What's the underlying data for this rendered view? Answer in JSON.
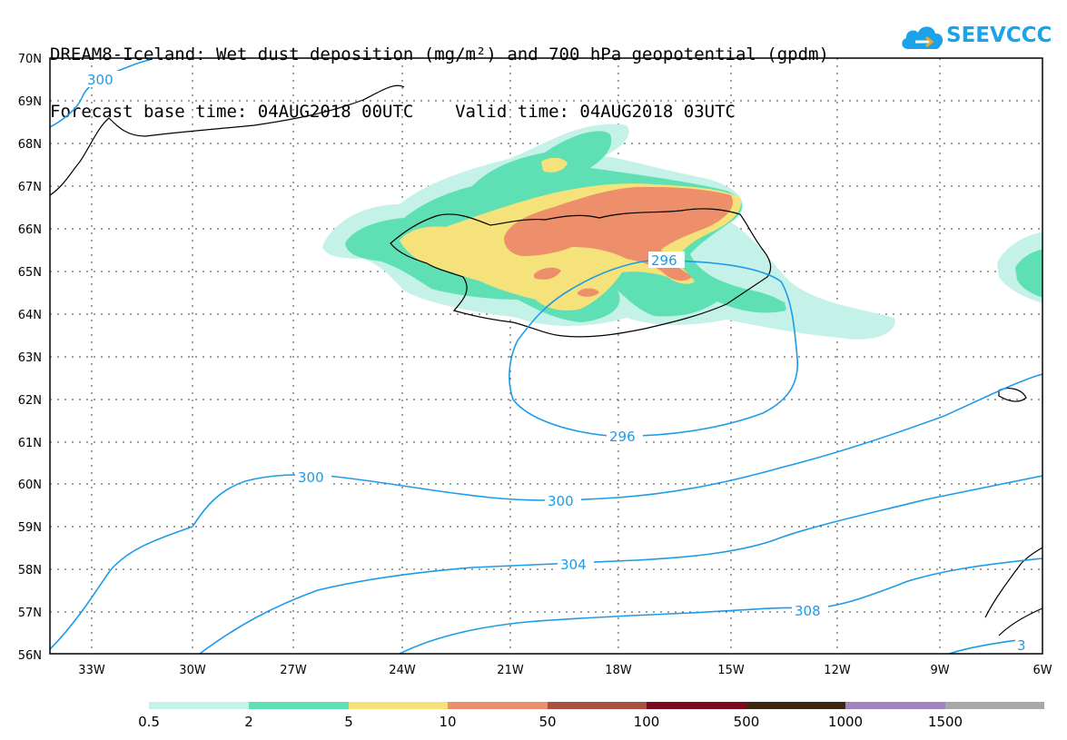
{
  "title": {
    "line1": "DREAM8-Iceland: Wet dust deposition (mg/m²) and 700 hPa geopotential (gpdm)",
    "line2": "Forecast base time: 04AUG2018 00UTC    Valid time: 04AUG2018 03UTC"
  },
  "logo": {
    "text": "SEEVCCC",
    "icon": "cloud-icon",
    "color": "#1aa3e8"
  },
  "axes": {
    "lat_labels": [
      "70N",
      "69N",
      "68N",
      "67N",
      "66N",
      "65N",
      "64N",
      "63N",
      "62N",
      "61N",
      "60N",
      "59N",
      "58N",
      "57N",
      "56N"
    ],
    "lon_labels": [
      "33W",
      "30W",
      "27W",
      "24W",
      "21W",
      "18W",
      "15W",
      "12W",
      "9W",
      "6W"
    ]
  },
  "contours": {
    "color": "#1e9be8",
    "labels": [
      "300",
      "296",
      "296",
      "300",
      "300",
      "304",
      "308",
      "3"
    ]
  },
  "colorbar": {
    "labels": [
      "0.5",
      "2",
      "5",
      "10",
      "50",
      "100",
      "500",
      "1000",
      "1500"
    ],
    "colors": [
      "#c4f2e8",
      "#5ee0b4",
      "#f5e27a",
      "#ed8f6a",
      "#a8513f",
      "#7b0a1e",
      "#3e2712",
      "#a183bf",
      "#a8a8a8"
    ]
  }
}
